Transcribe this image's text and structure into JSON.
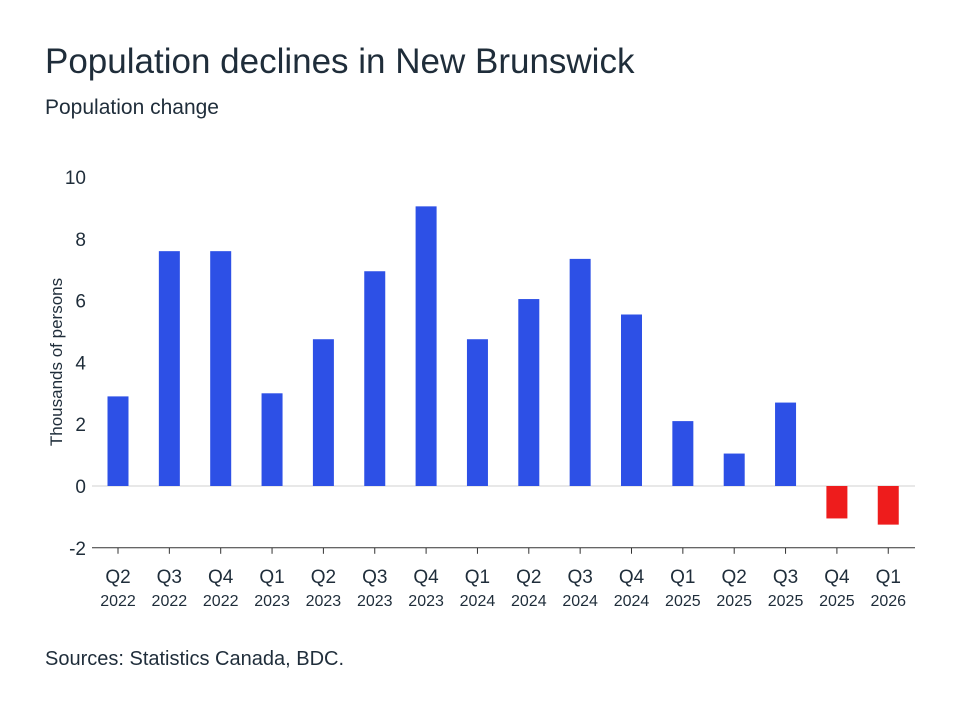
{
  "chart_data": {
    "type": "bar",
    "title": "Population declines in New Brunswick",
    "subtitle": "Population change",
    "ylabel": "Thousands of persons",
    "xlabel": "",
    "ylim": [
      -2,
      10
    ],
    "yticks": [
      10,
      8,
      6,
      4,
      2,
      0,
      -2
    ],
    "categories": [
      {
        "q": "Q2",
        "y": "2022"
      },
      {
        "q": "Q3",
        "y": "2022"
      },
      {
        "q": "Q4",
        "y": "2022"
      },
      {
        "q": "Q1",
        "y": "2023"
      },
      {
        "q": "Q2",
        "y": "2023"
      },
      {
        "q": "Q3",
        "y": "2023"
      },
      {
        "q": "Q4",
        "y": "2023"
      },
      {
        "q": "Q1",
        "y": "2024"
      },
      {
        "q": "Q2",
        "y": "2024"
      },
      {
        "q": "Q3",
        "y": "2024"
      },
      {
        "q": "Q4",
        "y": "2024"
      },
      {
        "q": "Q1",
        "y": "2025"
      },
      {
        "q": "Q2",
        "y": "2025"
      },
      {
        "q": "Q3",
        "y": "2025"
      },
      {
        "q": "Q4",
        "y": "2025"
      },
      {
        "q": "Q1",
        "y": "2026"
      }
    ],
    "values": [
      2.9,
      7.6,
      7.6,
      3.0,
      4.75,
      6.95,
      9.05,
      4.75,
      6.05,
      7.35,
      5.55,
      2.1,
      1.05,
      2.7,
      -1.05,
      -1.25
    ],
    "colors": {
      "positive": "#2d50e6",
      "negative": "#ee1c1c"
    },
    "grid": false,
    "legend": "none"
  },
  "source": "Sources: Statistics Canada, BDC."
}
